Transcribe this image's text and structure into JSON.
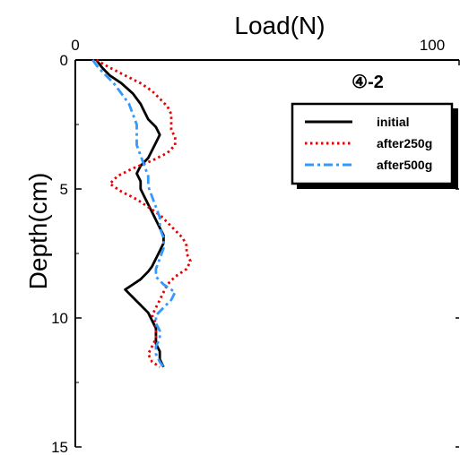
{
  "chart_data": {
    "type": "line",
    "title": "④-2",
    "xlabel": "Load(N)",
    "ylabel": "Depth(cm)",
    "xlim": [
      0,
      100
    ],
    "ylim": [
      0,
      15
    ],
    "y_inverted": true,
    "x_axis_position": "top",
    "x_ticks": [
      "0",
      "100"
    ],
    "y_ticks": [
      "0",
      "5",
      "10",
      "15"
    ],
    "legend_position": "top-right",
    "series": [
      {
        "name": "initial",
        "color": "#000000",
        "style": "solid",
        "points": [
          [
            5.5,
            0
          ],
          [
            7,
            0.3
          ],
          [
            9,
            0.6
          ],
          [
            12,
            0.9
          ],
          [
            15,
            1.3
          ],
          [
            17,
            1.7
          ],
          [
            18,
            2.0
          ],
          [
            19,
            2.3
          ],
          [
            21,
            2.6
          ],
          [
            22,
            2.9
          ],
          [
            21,
            3.2
          ],
          [
            20,
            3.5
          ],
          [
            19,
            3.8
          ],
          [
            17,
            4.1
          ],
          [
            16,
            4.4
          ],
          [
            17,
            4.7
          ],
          [
            17,
            5.0
          ],
          [
            18,
            5.3
          ],
          [
            19,
            5.6
          ],
          [
            20,
            5.9
          ],
          [
            21,
            6.2
          ],
          [
            22,
            6.5
          ],
          [
            23,
            6.8
          ],
          [
            23,
            7.1
          ],
          [
            22,
            7.4
          ],
          [
            21,
            7.7
          ],
          [
            20,
            8.0
          ],
          [
            19,
            8.2
          ],
          [
            17,
            8.5
          ],
          [
            15,
            8.7
          ],
          [
            13,
            8.9
          ],
          [
            15,
            9.2
          ],
          [
            17,
            9.5
          ],
          [
            19,
            9.8
          ],
          [
            20,
            10.1
          ],
          [
            21,
            10.4
          ],
          [
            21,
            10.7
          ],
          [
            21,
            11.0
          ],
          [
            22,
            11.3
          ],
          [
            22,
            11.6
          ],
          [
            23,
            11.9
          ]
        ]
      },
      {
        "name": "after250g",
        "color": "#e60000",
        "style": "dotted",
        "points": [
          [
            5.5,
            0
          ],
          [
            9,
            0.3
          ],
          [
            13,
            0.6
          ],
          [
            17,
            0.9
          ],
          [
            20,
            1.2
          ],
          [
            22,
            1.5
          ],
          [
            24,
            1.8
          ],
          [
            25,
            2.1
          ],
          [
            25,
            2.4
          ],
          [
            25,
            2.7
          ],
          [
            26,
            3.0
          ],
          [
            26,
            3.3
          ],
          [
            24,
            3.6
          ],
          [
            20,
            3.9
          ],
          [
            15,
            4.2
          ],
          [
            11,
            4.5
          ],
          [
            9,
            4.8
          ],
          [
            12,
            5.1
          ],
          [
            16,
            5.4
          ],
          [
            19,
            5.7
          ],
          [
            22,
            6.0
          ],
          [
            24,
            6.3
          ],
          [
            26,
            6.6
          ],
          [
            28,
            6.9
          ],
          [
            29,
            7.2
          ],
          [
            29,
            7.5
          ],
          [
            30,
            7.8
          ],
          [
            29,
            8.1
          ],
          [
            26,
            8.4
          ],
          [
            24,
            8.7
          ],
          [
            23,
            9.0
          ],
          [
            22,
            9.3
          ],
          [
            21,
            9.6
          ],
          [
            20,
            9.9
          ],
          [
            21,
            10.2
          ],
          [
            21,
            10.5
          ],
          [
            21,
            10.8
          ],
          [
            20,
            11.1
          ],
          [
            19,
            11.4
          ],
          [
            20,
            11.7
          ],
          [
            22,
            11.9
          ]
        ]
      },
      {
        "name": "after500g",
        "color": "#3399ff",
        "style": "dashdot",
        "points": [
          [
            4.5,
            0
          ],
          [
            6,
            0.3
          ],
          [
            8,
            0.6
          ],
          [
            10,
            0.9
          ],
          [
            12,
            1.3
          ],
          [
            14,
            1.7
          ],
          [
            15,
            2.1
          ],
          [
            16,
            2.5
          ],
          [
            16,
            2.9
          ],
          [
            16,
            3.3
          ],
          [
            17,
            3.7
          ],
          [
            18,
            4.1
          ],
          [
            19,
            4.5
          ],
          [
            19,
            4.9
          ],
          [
            20,
            5.3
          ],
          [
            21,
            5.7
          ],
          [
            22,
            6.1
          ],
          [
            22,
            6.5
          ],
          [
            23,
            6.9
          ],
          [
            23,
            7.3
          ],
          [
            22,
            7.7
          ],
          [
            21,
            8.1
          ],
          [
            21,
            8.4
          ],
          [
            23,
            8.7
          ],
          [
            26,
            9.0
          ],
          [
            25,
            9.3
          ],
          [
            23,
            9.6
          ],
          [
            21,
            9.9
          ],
          [
            21,
            10.2
          ],
          [
            22,
            10.5
          ],
          [
            22,
            10.8
          ],
          [
            21,
            11.1
          ],
          [
            21,
            11.4
          ],
          [
            22,
            11.7
          ],
          [
            23,
            11.9
          ]
        ]
      }
    ]
  }
}
